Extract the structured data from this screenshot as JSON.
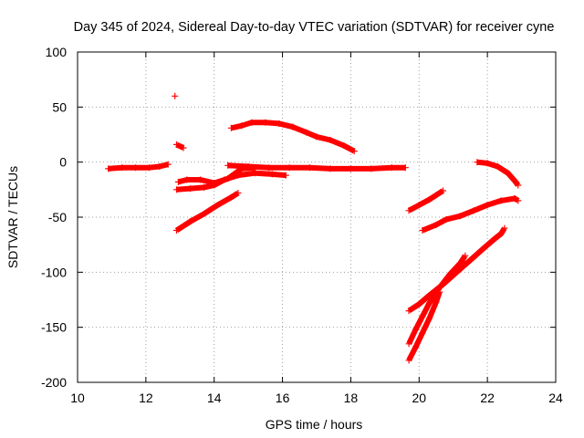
{
  "chart_data": {
    "type": "scatter",
    "title": "Day 345 of 2024, Sidereal Day-to-day VTEC variation (SDTVAR) for receiver cyne",
    "xlabel": "GPS time / hours",
    "ylabel": "SDTVAR / TECUs",
    "xlim": [
      10,
      24
    ],
    "ylim": [
      -200,
      100
    ],
    "xticks": [
      10,
      12,
      14,
      16,
      18,
      20,
      22,
      24
    ],
    "yticks": [
      -200,
      -150,
      -100,
      -50,
      0,
      50,
      100
    ],
    "xtick_labels": [
      "10",
      "12",
      "14",
      "16",
      "18",
      "20",
      "22",
      "24"
    ],
    "ytick_labels": [
      "-200",
      "-150",
      "-100",
      "-50",
      "0",
      "50",
      "100"
    ],
    "grid": true,
    "legend": "none",
    "marker": "+",
    "color": "#ff0000",
    "series": [
      {
        "points": [
          [
            10.9,
            -6
          ],
          [
            11.3,
            -5
          ],
          [
            11.7,
            -5
          ],
          [
            12.1,
            -5
          ],
          [
            12.4,
            -4
          ],
          [
            12.65,
            -2
          ]
        ]
      },
      {
        "points": [
          [
            12.85,
            60
          ]
        ]
      },
      {
        "points": [
          [
            12.9,
            16
          ],
          [
            13.1,
            13
          ]
        ]
      },
      {
        "points": [
          [
            12.9,
            -62
          ],
          [
            13.3,
            -54
          ],
          [
            13.7,
            -47
          ],
          [
            14.1,
            -39
          ],
          [
            14.5,
            -32
          ],
          [
            14.7,
            -28
          ]
        ]
      },
      {
        "points": [
          [
            12.9,
            -25
          ],
          [
            13.3,
            -24
          ],
          [
            13.7,
            -23
          ],
          [
            14.0,
            -21
          ],
          [
            14.3,
            -16
          ],
          [
            14.7,
            -12
          ],
          [
            15.2,
            -10
          ],
          [
            15.7,
            -11
          ],
          [
            16.1,
            -12
          ]
        ]
      },
      {
        "points": [
          [
            12.95,
            -18
          ],
          [
            13.2,
            -16
          ],
          [
            13.6,
            -16
          ],
          [
            14.0,
            -19
          ],
          [
            14.4,
            -15
          ],
          [
            14.8,
            -6
          ],
          [
            15.2,
            -5
          ]
        ]
      },
      {
        "points": [
          [
            14.5,
            31
          ],
          [
            14.8,
            33
          ],
          [
            15.1,
            36
          ],
          [
            15.5,
            36
          ],
          [
            15.9,
            35
          ],
          [
            16.3,
            32
          ],
          [
            16.7,
            27
          ],
          [
            17.0,
            23
          ],
          [
            17.4,
            20
          ],
          [
            17.8,
            15
          ],
          [
            18.1,
            10
          ]
        ]
      },
      {
        "points": [
          [
            14.4,
            -3
          ],
          [
            15.0,
            -4
          ],
          [
            15.6,
            -5
          ],
          [
            16.2,
            -5
          ],
          [
            16.8,
            -5
          ],
          [
            17.4,
            -6
          ],
          [
            18.0,
            -6
          ],
          [
            18.6,
            -6
          ],
          [
            19.2,
            -5
          ],
          [
            19.6,
            -5
          ]
        ]
      },
      {
        "points": [
          [
            19.7,
            -44
          ],
          [
            20.0,
            -39
          ],
          [
            20.3,
            -34
          ],
          [
            20.5,
            -30
          ],
          [
            20.7,
            -26
          ]
        ]
      },
      {
        "points": [
          [
            20.1,
            -62
          ],
          [
            20.5,
            -57
          ],
          [
            20.8,
            -52
          ],
          [
            21.2,
            -49
          ],
          [
            21.6,
            -44
          ],
          [
            22.0,
            -39
          ],
          [
            22.4,
            -35
          ],
          [
            22.8,
            -33
          ],
          [
            22.9,
            -35
          ]
        ]
      },
      {
        "points": [
          [
            21.7,
            0
          ],
          [
            22.0,
            -1
          ],
          [
            22.3,
            -4
          ],
          [
            22.6,
            -10
          ],
          [
            22.8,
            -17
          ],
          [
            22.9,
            -21
          ]
        ]
      },
      {
        "points": [
          [
            19.7,
            -135
          ],
          [
            20.0,
            -129
          ],
          [
            20.3,
            -121
          ],
          [
            20.7,
            -111
          ],
          [
            21.1,
            -100
          ],
          [
            21.5,
            -89
          ],
          [
            21.9,
            -78
          ],
          [
            22.2,
            -70
          ],
          [
            22.4,
            -65
          ],
          [
            22.5,
            -60
          ]
        ]
      },
      {
        "points": [
          [
            19.7,
            -165
          ],
          [
            19.9,
            -152
          ],
          [
            20.1,
            -140
          ],
          [
            20.3,
            -128
          ],
          [
            20.6,
            -114
          ],
          [
            20.9,
            -102
          ],
          [
            21.2,
            -92
          ],
          [
            21.35,
            -85
          ]
        ]
      },
      {
        "points": [
          [
            19.7,
            -180
          ],
          [
            19.9,
            -168
          ],
          [
            20.1,
            -155
          ],
          [
            20.3,
            -142
          ],
          [
            20.5,
            -127
          ],
          [
            20.6,
            -118
          ]
        ]
      }
    ]
  }
}
